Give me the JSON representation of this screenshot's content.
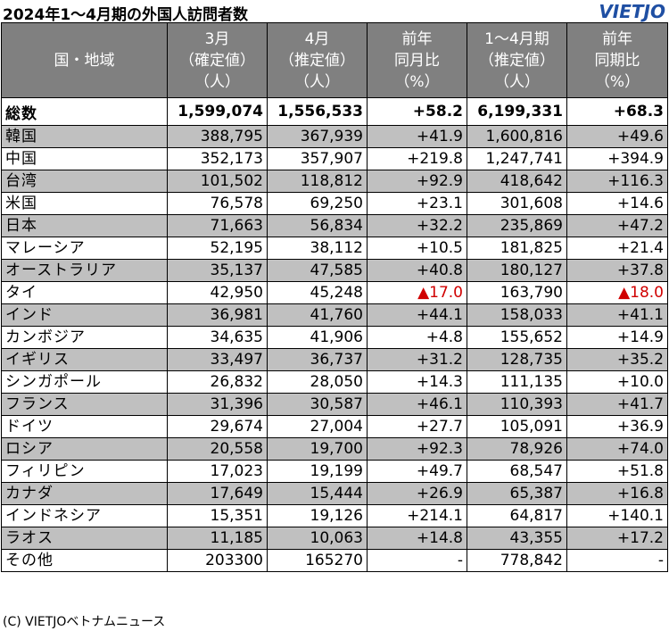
{
  "title": "2024年1～4月期の外国人訪問者数",
  "logo": "VIETJO",
  "credit": "(C) VIETJOベトナムニュース",
  "headers": [
    [
      "国・地域"
    ],
    [
      "3月",
      "（確定値）",
      "（人）"
    ],
    [
      "4月",
      "（推定値）",
      "（人）"
    ],
    [
      "前年",
      "同月比",
      "（%）"
    ],
    [
      "1～4月期",
      "（推定値）",
      "（人）"
    ],
    [
      "前年",
      "同期比",
      "（%）"
    ]
  ],
  "total": [
    "総数",
    "1,599,074",
    "1,556,533",
    "+58.2",
    "6,199,331",
    "+68.3"
  ],
  "rows": [
    [
      "韓国",
      "388,795",
      "367,939",
      "+41.9",
      "1,600,816",
      "+49.6"
    ],
    [
      "中国",
      "352,173",
      "357,907",
      "+219.8",
      "1,247,741",
      "+394.9"
    ],
    [
      "台湾",
      "101,502",
      "118,812",
      "+92.9",
      "418,642",
      "+116.3"
    ],
    [
      "米国",
      "76,578",
      "69,250",
      "+23.1",
      "301,608",
      "+14.6"
    ],
    [
      "日本",
      "71,663",
      "56,834",
      "+32.2",
      "235,869",
      "+47.2"
    ],
    [
      "マレーシア",
      "52,195",
      "38,112",
      "+10.5",
      "181,825",
      "+21.4"
    ],
    [
      "オーストラリア",
      "35,137",
      "47,585",
      "+40.8",
      "180,127",
      "+37.8"
    ],
    [
      "タイ",
      "42,950",
      "45,248",
      "▲17.0",
      "163,790",
      "▲18.0"
    ],
    [
      "インド",
      "36,981",
      "41,760",
      "+44.1",
      "158,033",
      "+41.1"
    ],
    [
      "カンボジア",
      "34,635",
      "41,906",
      "+4.8",
      "155,652",
      "+14.9"
    ],
    [
      "イギリス",
      "33,497",
      "36,737",
      "+31.2",
      "128,735",
      "+35.2"
    ],
    [
      "シンガポール",
      "26,832",
      "28,050",
      "+14.3",
      "111,135",
      "+10.0"
    ],
    [
      "フランス",
      "31,396",
      "30,587",
      "+46.1",
      "110,393",
      "+41.7"
    ],
    [
      "ドイツ",
      "29,674",
      "27,004",
      "+27.7",
      "105,091",
      "+36.9"
    ],
    [
      "ロシア",
      "20,558",
      "19,700",
      "+92.3",
      "78,926",
      "+74.0"
    ],
    [
      "フィリピン",
      "17,023",
      "19,199",
      "+49.7",
      "68,547",
      "+51.8"
    ],
    [
      "カナダ",
      "17,649",
      "15,444",
      "+26.9",
      "65,387",
      "+16.8"
    ],
    [
      "インドネシア",
      "15,351",
      "19,126",
      "+214.1",
      "64,817",
      "+140.1"
    ],
    [
      "ラオス",
      "11,185",
      "10,063",
      "+14.8",
      "43,355",
      "+17.2"
    ],
    [
      "その他",
      "203300",
      "165270",
      "-",
      "778,842",
      "-"
    ]
  ],
  "colors": {
    "header_bg": "#808080",
    "shade_bg": "#c0c0c0",
    "negative": "#d00000",
    "logo": "#1f4fa3"
  }
}
